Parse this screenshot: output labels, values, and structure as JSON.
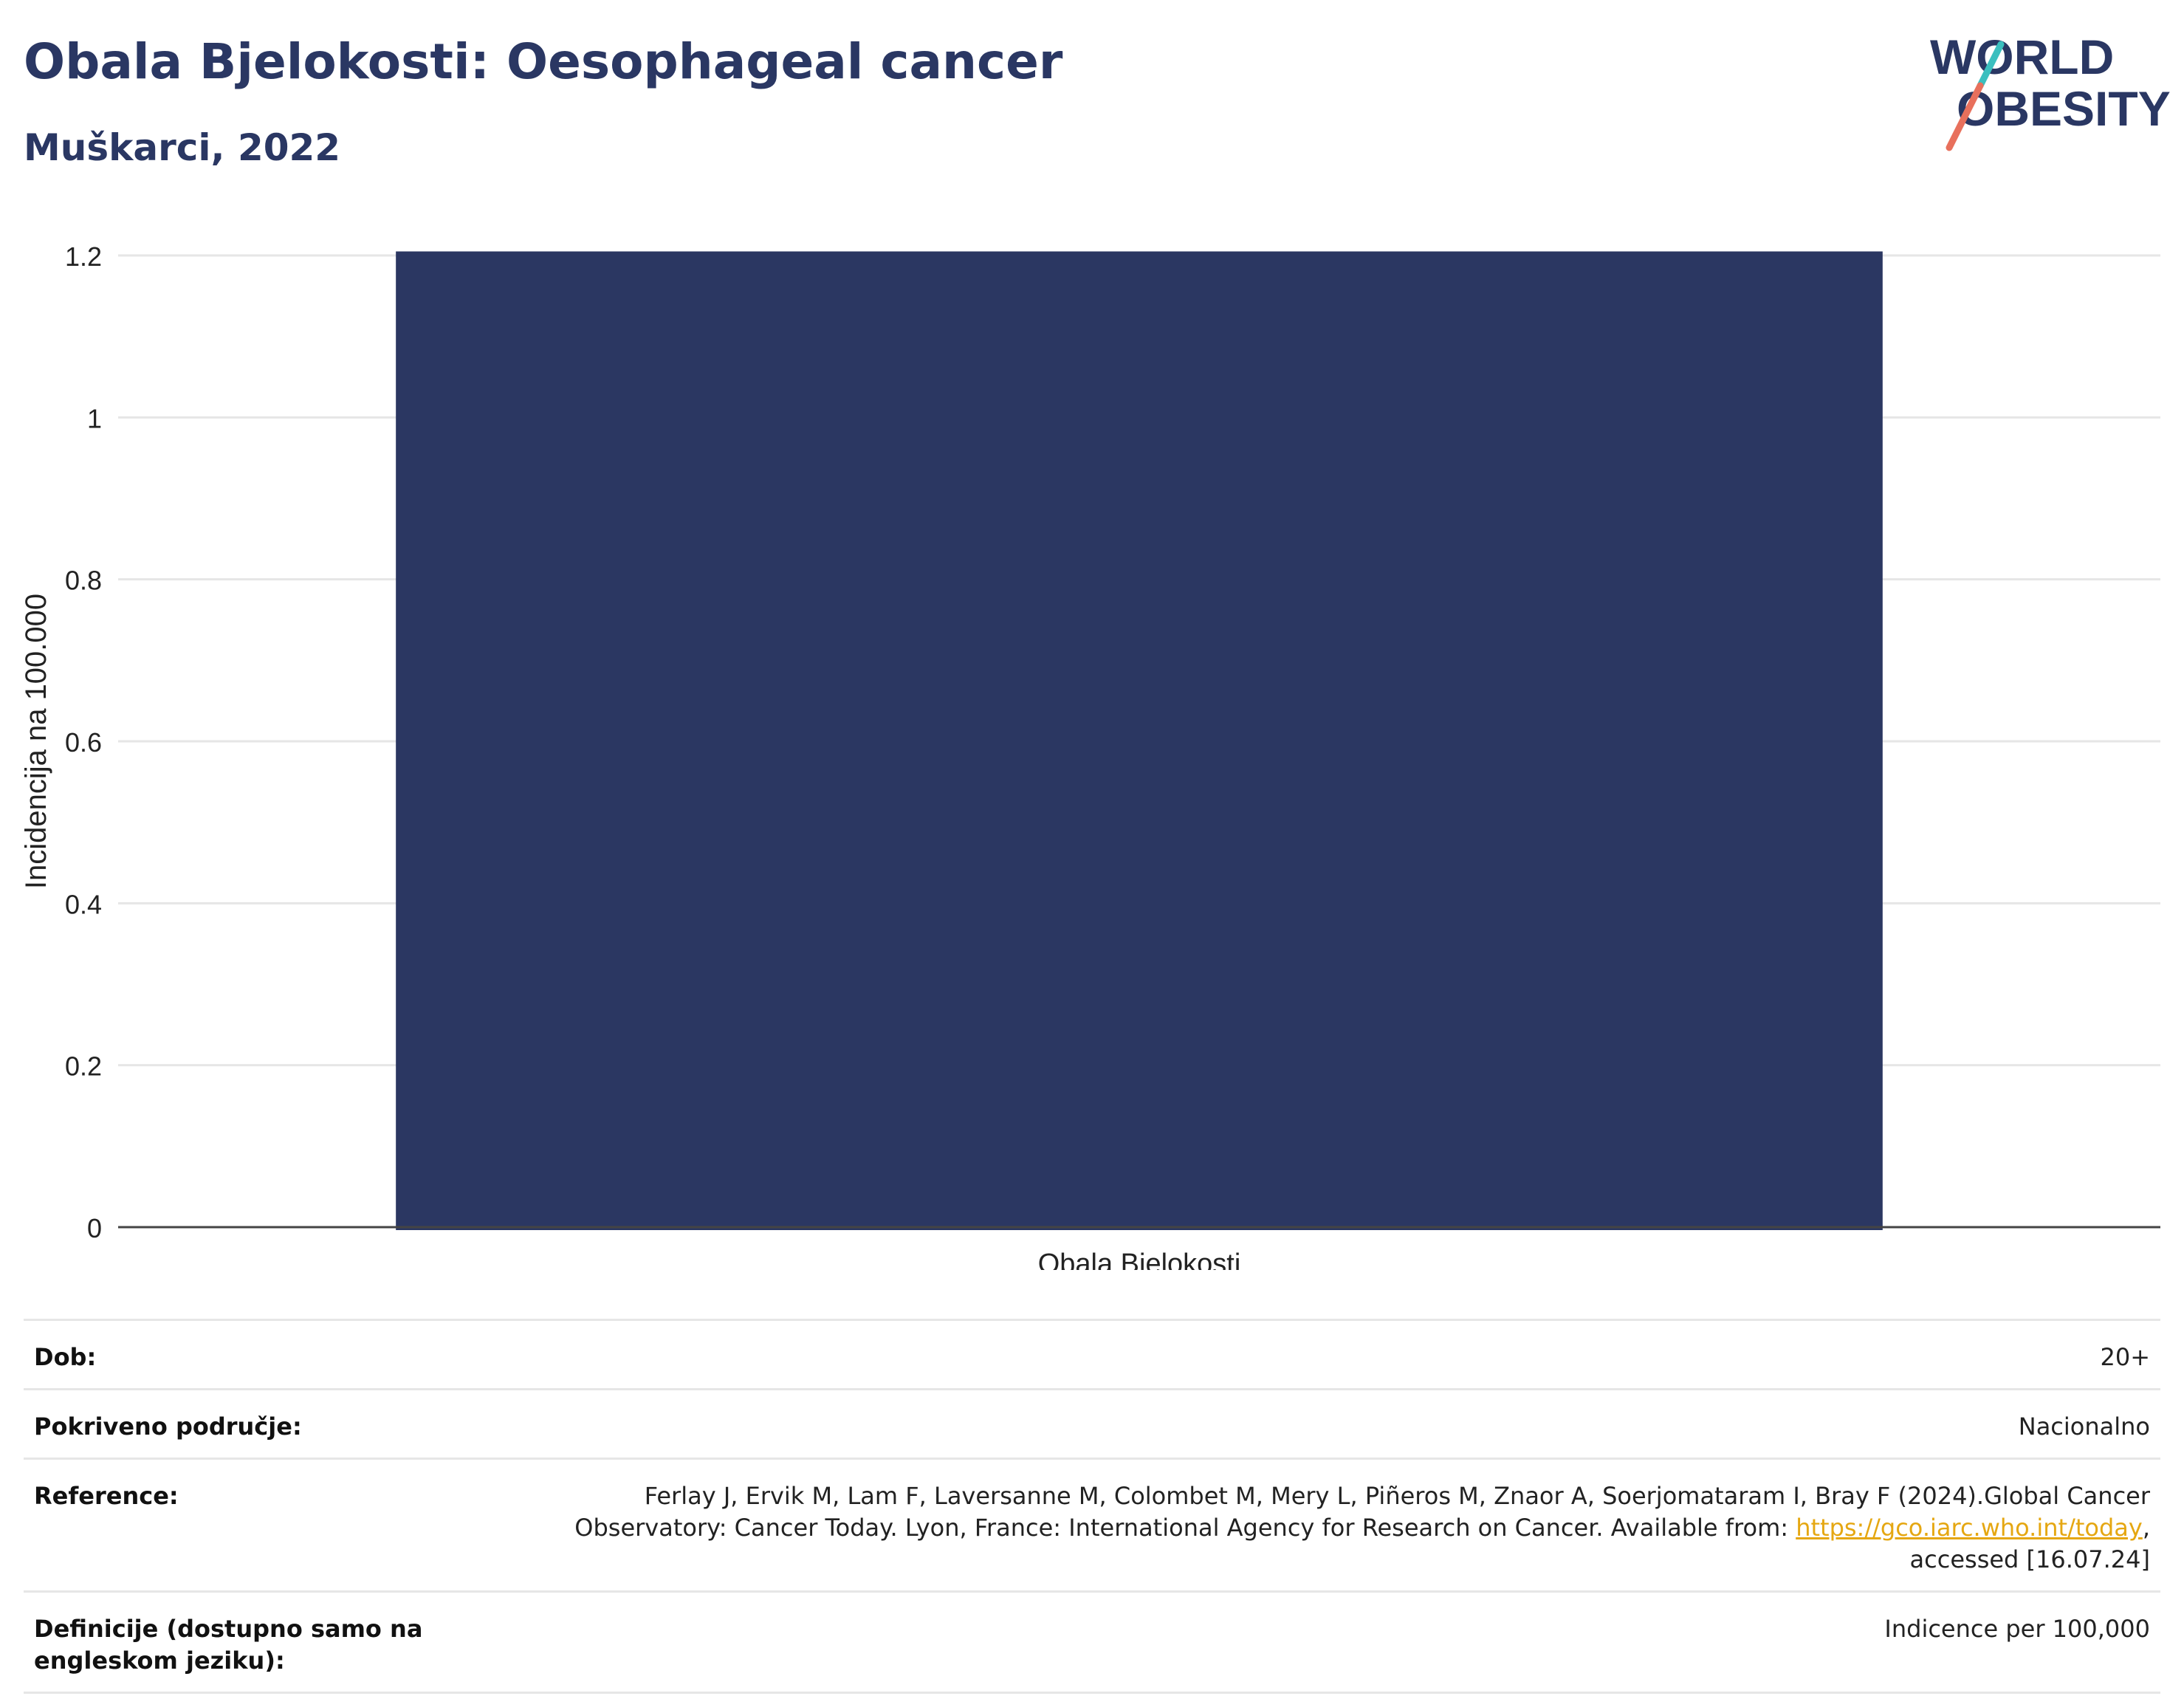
{
  "header": {
    "title": "Obala Bjelokosti: Oesophageal cancer",
    "subtitle": "Muškarci, 2022"
  },
  "logo": {
    "line1": "WORLD",
    "line2": "OBESITY",
    "text_color": "#2a3763",
    "slash_color_top": "#3bbfbf",
    "slash_color_bottom": "#e8705c"
  },
  "chart_data": {
    "type": "bar",
    "categories": [
      "Obala Bjelokosti"
    ],
    "values": [
      1.205
    ],
    "ylabel": "Incidencija na 100.000",
    "xlabel": "",
    "ylim": [
      0,
      1.2
    ],
    "yticks": [
      0,
      0.2,
      0.4,
      0.6,
      0.8,
      1,
      1.2
    ],
    "ytick_labels": [
      "0",
      "0.2",
      "0.4",
      "0.6",
      "0.8",
      "1",
      "1.2"
    ],
    "grid": true,
    "bar_color": "#2b3762"
  },
  "info": {
    "rows": [
      {
        "label": "Dob:",
        "value": "20+"
      },
      {
        "label": "Pokriveno područje:",
        "value": "Nacionalno"
      },
      {
        "label": "Reference:",
        "value_before": "Ferlay J, Ervik M, Lam F, Laversanne M, Colombet M, Mery L, Piñeros M, Znaor A, Soerjomataram I, Bray F (2024).Global Cancer Observatory: Cancer Today. Lyon, France: International Agency for Research on Cancer. Available from: ",
        "link": "https://gco.iarc.who.int/today",
        "value_after": ", accessed [16.07.24]"
      },
      {
        "label": "Definicije (dostupno samo na engleskom jeziku):",
        "value": "Indicence per 100,000"
      }
    ]
  }
}
